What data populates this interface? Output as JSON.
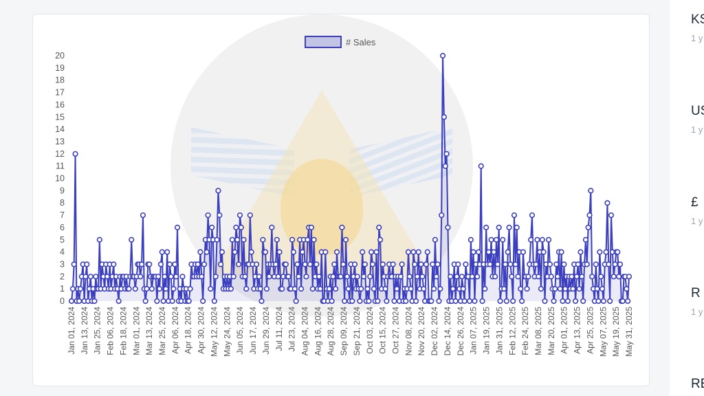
{
  "chart_data": {
    "type": "line",
    "legend": {
      "label": "# Sales",
      "position": "top"
    },
    "color": "#3b3fbf",
    "ylim": [
      0,
      20
    ],
    "y_ticks": [
      0,
      1,
      2,
      3,
      4,
      5,
      6,
      7,
      8,
      9,
      10,
      11,
      12,
      13,
      14,
      15,
      16,
      17,
      18,
      19,
      20
    ],
    "x_tick_labels": [
      "Jan 01, 2024",
      "Jan 13, 2024",
      "Jan 25, 2024",
      "Feb 06, 2024",
      "Feb 18, 2024",
      "Mar 01, 2024",
      "Mar 13, 2024",
      "Mar 25, 2024",
      "Apr 06, 2024",
      "Apr 18, 2024",
      "Apr 30, 2024",
      "May 12, 2024",
      "May 24, 2024",
      "Jun 05, 2024",
      "Jun 17, 2024",
      "Jun 29, 2024",
      "Jul 11, 2024",
      "Jul 23, 2024",
      "Aug 04, 2024",
      "Aug 16, 2024",
      "Aug 28, 2024",
      "Sep 09, 2024",
      "Sep 21, 2024",
      "Oct 03, 2024",
      "Oct 15, 2024",
      "Oct 27, 2024",
      "Nov 08, 2024",
      "Nov 20, 2024",
      "Dec 02, 2024",
      "Dec 14, 2024",
      "Dec 26, 2024",
      "Jan 07, 2025",
      "Jan 19, 2025",
      "Jan 31, 2025",
      "Feb 12, 2025",
      "Feb 24, 2025",
      "Mar 08, 2025",
      "Mar 20, 2025",
      "Apr 01, 2025",
      "Apr 13, 2025",
      "Apr 25, 2025",
      "May 07, 2025",
      "May 19, 2025",
      "May 31, 2025"
    ],
    "values": [
      0,
      1,
      3,
      12,
      0,
      1,
      0,
      1,
      2,
      3,
      0,
      2,
      3,
      0,
      1,
      2,
      0,
      1,
      0,
      2,
      1,
      1,
      5,
      1,
      3,
      2,
      1,
      3,
      2,
      1,
      3,
      1,
      2,
      3,
      1,
      2,
      1,
      0,
      2,
      1,
      2,
      2,
      1,
      2,
      1,
      1,
      2,
      5,
      2,
      2,
      1,
      2,
      3,
      3,
      2,
      3,
      7,
      1,
      0,
      1,
      3,
      3,
      2,
      1,
      2,
      2,
      2,
      0,
      2,
      1,
      3,
      4,
      0,
      2,
      1,
      4,
      0,
      3,
      2,
      0,
      1,
      3,
      2,
      6,
      0,
      1,
      0,
      2,
      1,
      0,
      1,
      0,
      0,
      1,
      3,
      2,
      2,
      3,
      2,
      3,
      2,
      4,
      2,
      0,
      3,
      5,
      4,
      7,
      5,
      1,
      6,
      5,
      0,
      2,
      5,
      9,
      7,
      3,
      4,
      1,
      2,
      1,
      2,
      1,
      2,
      1,
      5,
      2,
      4,
      6,
      5,
      3,
      7,
      6,
      2,
      5,
      2,
      1,
      3,
      3,
      7,
      4,
      3,
      1,
      2,
      3,
      1,
      2,
      1,
      0,
      5,
      4,
      4,
      1,
      3,
      2,
      3,
      6,
      3,
      2,
      3,
      5,
      2,
      4,
      1,
      1,
      2,
      3,
      3,
      2,
      2,
      1,
      1,
      5,
      4,
      1,
      0,
      3,
      2,
      5,
      1,
      4,
      5,
      3,
      2,
      5,
      6,
      3,
      6,
      1,
      5,
      2,
      3,
      1,
      2,
      1,
      4,
      0,
      0,
      4,
      1,
      0,
      1,
      2,
      0,
      2,
      3,
      1,
      4,
      2,
      2,
      2,
      6,
      3,
      0,
      5,
      2,
      1,
      0,
      3,
      0,
      2,
      3,
      1,
      2,
      1,
      0,
      1,
      4,
      2,
      3,
      0,
      1,
      0,
      2,
      4,
      3,
      1,
      0,
      4,
      0,
      6,
      5,
      1,
      3,
      2,
      1,
      0,
      2,
      3,
      2,
      2,
      3,
      0,
      2,
      1,
      2,
      0,
      2,
      3,
      0,
      1,
      0,
      1,
      4,
      2,
      1,
      0,
      4,
      3,
      0,
      2,
      4,
      1,
      3,
      2,
      1,
      0,
      3,
      4,
      0,
      0,
      0,
      3,
      1,
      5,
      2,
      3,
      0,
      1,
      7,
      20,
      15,
      11,
      12,
      6,
      0,
      2,
      0,
      1,
      3,
      0,
      2,
      3,
      1,
      0,
      2,
      1,
      0,
      3,
      2,
      2,
      0,
      5,
      2,
      4,
      0,
      3,
      2,
      4,
      3,
      11,
      0,
      3,
      1,
      6,
      3,
      4,
      3,
      5,
      2,
      4,
      2,
      5,
      3,
      6,
      0,
      1,
      5,
      1,
      3,
      0,
      4,
      6,
      3,
      2,
      0,
      7,
      3,
      6,
      2,
      4,
      1,
      0,
      4,
      2,
      2,
      1,
      2,
      3,
      5,
      7,
      3,
      2,
      3,
      5,
      2,
      4,
      1,
      5,
      4,
      0,
      3,
      2,
      5,
      3,
      2,
      1,
      0,
      1,
      3,
      2,
      4,
      1,
      4,
      0,
      3,
      1,
      2,
      0,
      2,
      1,
      2,
      1,
      3,
      0,
      2,
      3,
      1,
      4,
      2,
      0,
      3,
      5,
      3,
      6,
      7,
      9,
      2,
      1,
      0,
      3,
      1,
      0,
      4,
      2,
      1,
      0,
      3,
      4,
      8,
      3,
      0,
      7,
      4,
      2,
      3,
      4,
      4,
      2,
      3,
      0,
      0,
      2,
      2,
      1,
      0,
      2
    ]
  },
  "right_panel": {
    "items": [
      {
        "title": "KSh",
        "sub": "1 y"
      },
      {
        "title": "US",
        "sub": "1 y"
      },
      {
        "title": "£",
        "sub": "1 y"
      },
      {
        "title": "R",
        "sub": "1 y"
      },
      {
        "title": "RE",
        "sub": ""
      }
    ]
  }
}
